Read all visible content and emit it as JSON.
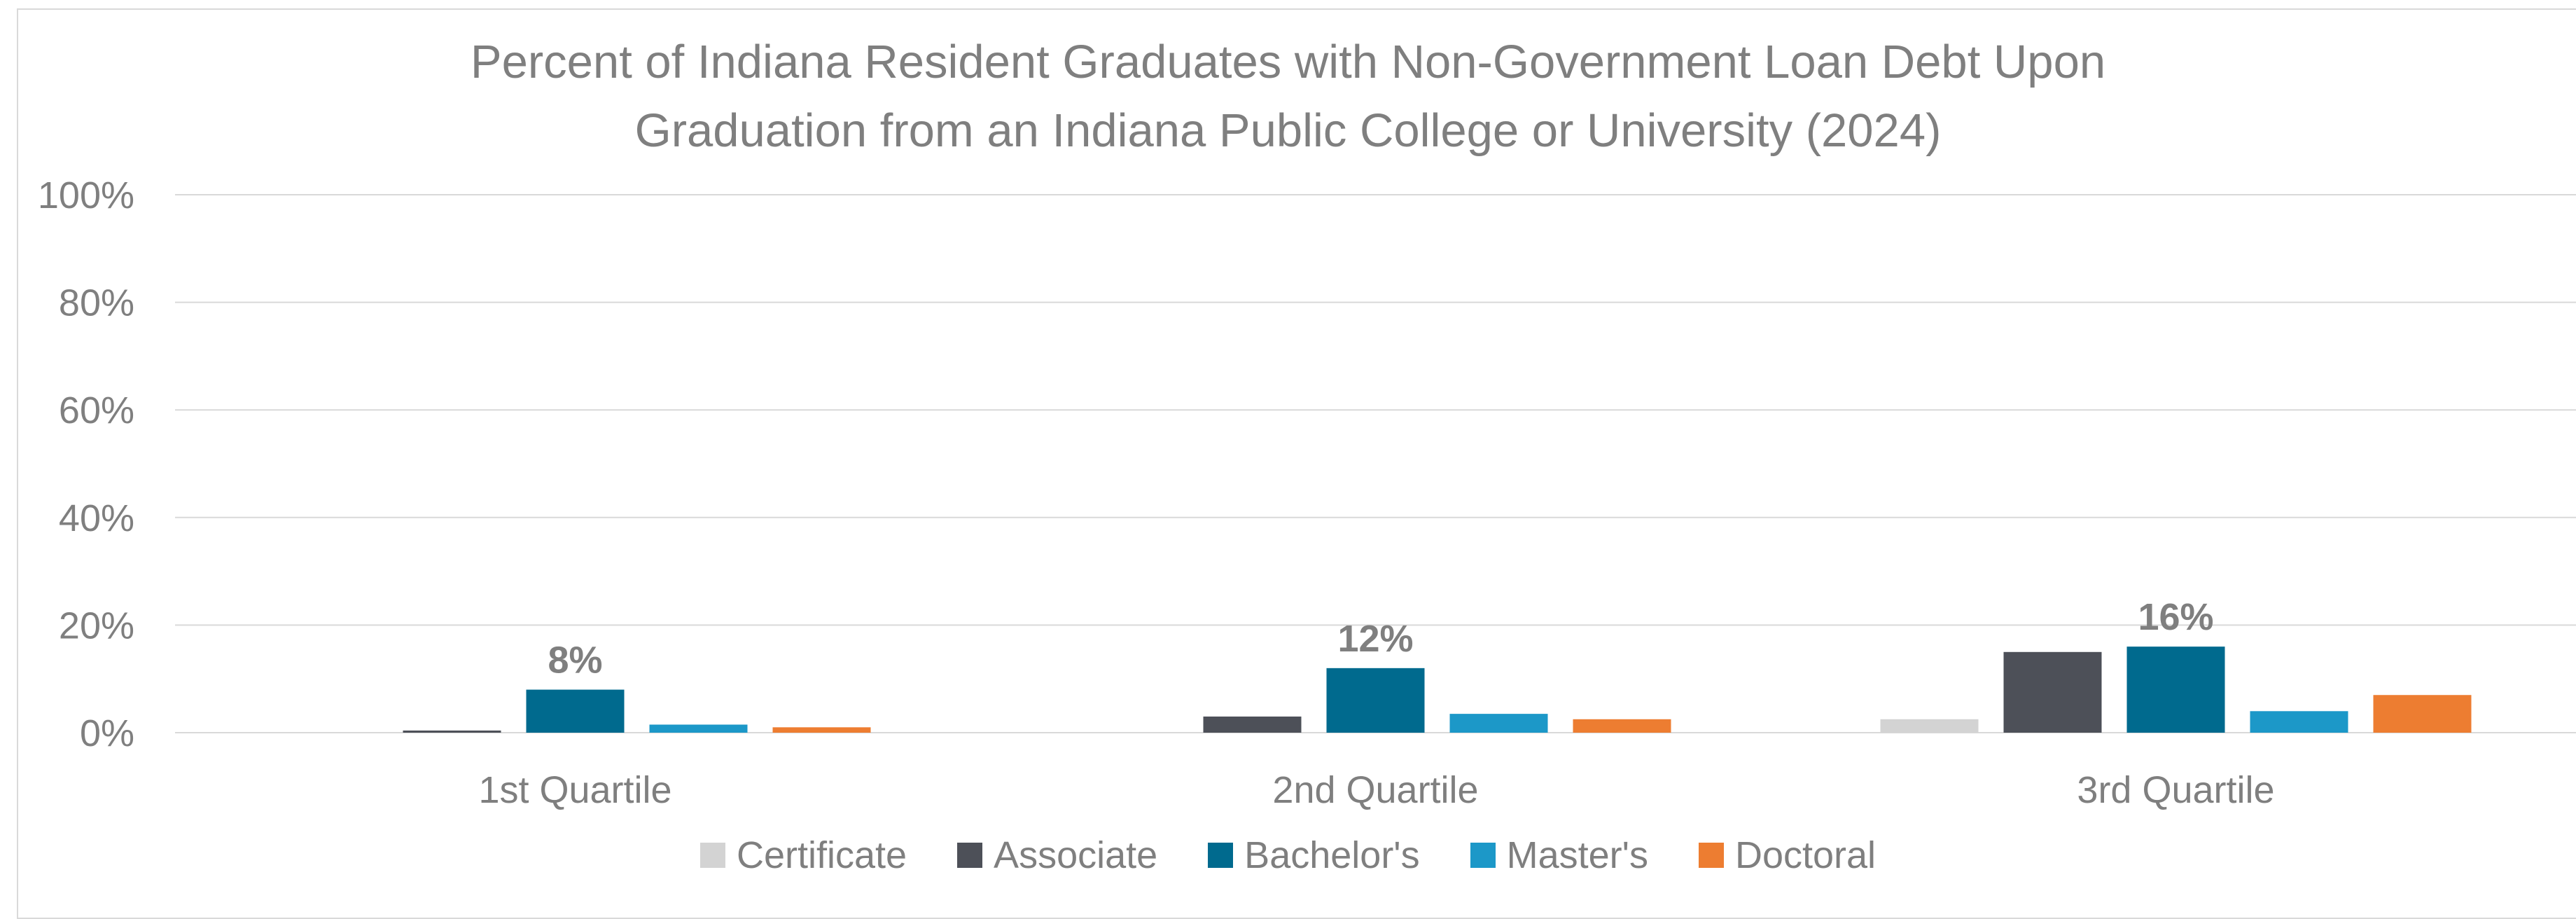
{
  "chart_data": {
    "type": "bar",
    "title": "Percent of Indiana Resident Graduates with Non-Government Loan Debt Upon\nGraduation from an Indiana Public College or University (2024)",
    "categories": [
      "1st Quartile",
      "2nd Quartile",
      "3rd Quartile"
    ],
    "series": [
      {
        "name": "Certificate",
        "color": "#d3d3d3",
        "values": [
          0,
          0,
          2.5
        ]
      },
      {
        "name": "Associate",
        "color": "#4d5058",
        "values": [
          0.4,
          3,
          15
        ]
      },
      {
        "name": "Bachelor's",
        "color": "#006a8e",
        "values": [
          8,
          12,
          16
        ]
      },
      {
        "name": "Master's",
        "color": "#1c98c8",
        "values": [
          1.5,
          3.5,
          4
        ]
      },
      {
        "name": "Doctoral",
        "color": "#ed7d31",
        "values": [
          1,
          2.5,
          7
        ]
      }
    ],
    "data_labels": {
      "series": "Bachelor's",
      "texts": [
        "8%",
        "12%",
        "16%"
      ]
    },
    "ylim": [
      0,
      100
    ],
    "yticks": [
      "0%",
      "20%",
      "40%",
      "60%",
      "80%",
      "100%"
    ],
    "ytick_values": [
      0,
      20,
      40,
      60,
      80,
      100
    ],
    "grid": true,
    "legend_position": "bottom"
  }
}
